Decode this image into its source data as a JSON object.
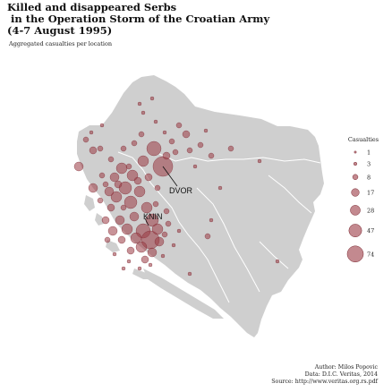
{
  "title": "Killed and disappeared Serbs\n in the Operation Storm of the Croatian Army\n(4-7 August 1995)",
  "subtitle": "Aggregated casualties per location",
  "legend": {
    "title": "Casualties",
    "items": [
      {
        "label": "1",
        "value": 1
      },
      {
        "label": "3",
        "value": 3
      },
      {
        "label": "8",
        "value": 8
      },
      {
        "label": "17",
        "value": 17
      },
      {
        "label": "28",
        "value": 28
      },
      {
        "label": "47",
        "value": 47
      },
      {
        "label": "74",
        "value": 74
      }
    ]
  },
  "places": [
    {
      "name": "DVOR",
      "label": "DVOR"
    },
    {
      "name": "KNIN",
      "label": "KNIN"
    }
  ],
  "credits": {
    "author": "Author: Milos Popovic",
    "data": "Data: D.I.C. Veritas, 2014",
    "source": "Source: http://www.veritas.org.rs.pdf"
  },
  "colors": {
    "land": "#cfcfcf",
    "border": "#ffffff",
    "circle_fill": "#9b3b44",
    "circle_stroke": "#7a2730"
  }
}
